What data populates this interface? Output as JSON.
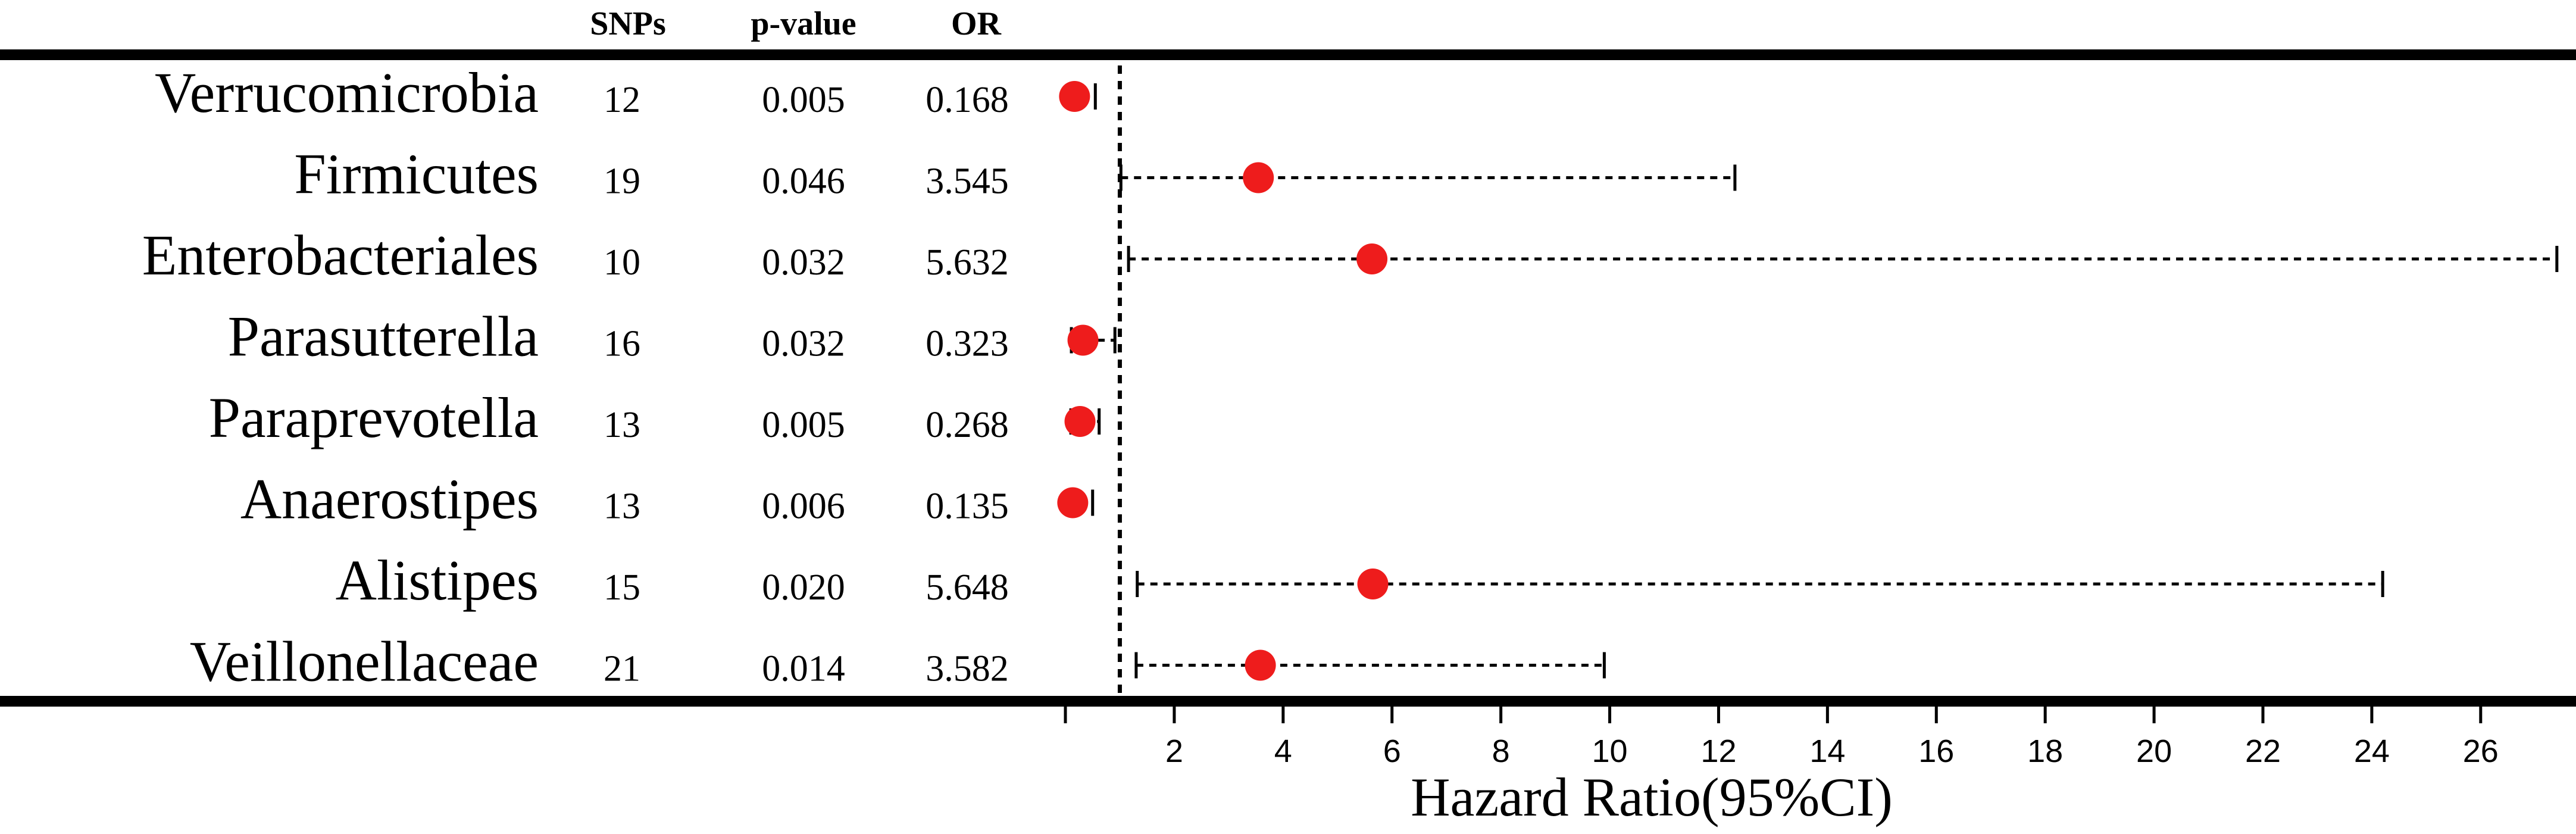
{
  "chart_data": {
    "type": "forest",
    "columns": {
      "snps": "SNPs",
      "pvalue": "p-value",
      "or": "OR"
    },
    "xlabel": "Hazard Ratio(95%CI)",
    "xlim": [
      0,
      27.5
    ],
    "xticks": [
      0,
      2,
      4,
      6,
      8,
      10,
      12,
      14,
      16,
      18,
      20,
      22,
      24,
      26
    ],
    "xtick_labels": [
      "",
      "2",
      "4",
      "6",
      "8",
      "10",
      "12",
      "14",
      "16",
      "18",
      "20",
      "22",
      "24",
      "26"
    ],
    "reference_line": 1,
    "point_color": "#ee1c1c",
    "rows": [
      {
        "label": "Verrucomicrobia",
        "snps": "12",
        "pvalue": "0.005",
        "or_text": "0.168",
        "or": 0.168,
        "lower": 0.05,
        "upper": 0.55
      },
      {
        "label": "Firmicutes",
        "snps": "19",
        "pvalue": "0.046",
        "or_text": "3.545",
        "or": 3.545,
        "lower": 1.02,
        "upper": 12.3
      },
      {
        "label": "Enterobacteriales",
        "snps": "10",
        "pvalue": "0.032",
        "or_text": "5.632",
        "or": 5.632,
        "lower": 1.16,
        "upper": 27.4
      },
      {
        "label": "Parasutterella",
        "snps": "16",
        "pvalue": "0.032",
        "or_text": "0.323",
        "or": 0.323,
        "lower": 0.11,
        "upper": 0.91
      },
      {
        "label": "Paraprevotella",
        "snps": "13",
        "pvalue": "0.005",
        "or_text": "0.268",
        "or": 0.268,
        "lower": 0.1,
        "upper": 0.62
      },
      {
        "label": "Anaerostipes",
        "snps": "13",
        "pvalue": "0.006",
        "or_text": "0.135",
        "or": 0.135,
        "lower": 0.03,
        "upper": 0.5
      },
      {
        "label": "Alistipes",
        "snps": "15",
        "pvalue": "0.020",
        "or_text": "5.648",
        "or": 5.648,
        "lower": 1.32,
        "upper": 24.2
      },
      {
        "label": "Veillonellaceae",
        "snps": "21",
        "pvalue": "0.014",
        "or_text": "3.582",
        "or": 3.582,
        "lower": 1.3,
        "upper": 9.9
      }
    ]
  }
}
